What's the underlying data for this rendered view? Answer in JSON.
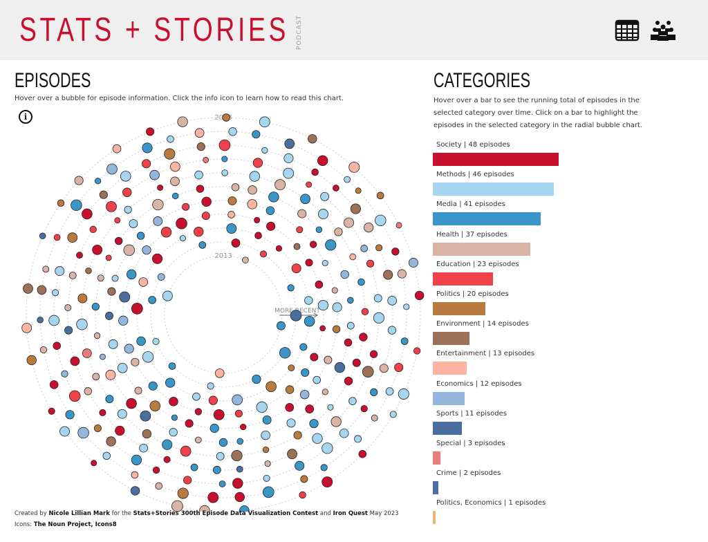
{
  "header": {
    "logo": "STATS + STORIES",
    "logo_sub": "PODCAST",
    "icons": [
      "calendar-grid-icon",
      "people-group-icon"
    ]
  },
  "episodes": {
    "title": "EPISODES",
    "description": "Hover over a bubble for episode information. Click the info icon to learn how to read this chart.",
    "info_icon": "i",
    "label_start": "2013",
    "label_end": "2023",
    "arrow_label": "MORE RECENT"
  },
  "categories": {
    "title": "CATEGORIES",
    "description": "Hover over a bar to see the running total of episodes in the selected category over time. Click on a bar to highlight the episodes in the selected category in the radial bubble chart."
  },
  "chart_data": {
    "type": "bar",
    "orientation": "horizontal",
    "categories": [
      "Society",
      "Methods",
      "Media",
      "Health",
      "Education",
      "Politics",
      "Environment",
      "Entertainment",
      "Economics",
      "Sports",
      "Special",
      "Crime",
      "Politics, Economics"
    ],
    "values": [
      48,
      46,
      41,
      37,
      23,
      20,
      14,
      13,
      12,
      11,
      3,
      2,
      1
    ],
    "labels": [
      "Society | 48 episodes",
      "Methods | 46 episodes",
      "Media | 41 episodes",
      "Health | 37 episodes",
      "Education | 23 episodes",
      "Politics | 20 episodes",
      "Environment | 14 episodes",
      "Entertainment | 13 episodes",
      "Economics | 12 episodes",
      "Sports | 11 episodes",
      "Special | 3 episodes",
      "Crime | 2 episodes",
      "Politics, Economics | 1 episodes"
    ],
    "colors": [
      "#c8102e",
      "#a6d5ef",
      "#3a96c8",
      "#d9b3a3",
      "#ef4149",
      "#b87a3e",
      "#9b7158",
      "#fdb4a3",
      "#94b6dc",
      "#4a6f9f",
      "#e87b7c",
      "#4a6fa8",
      "#e8b57b"
    ],
    "radial_years": [
      2013,
      2023
    ]
  },
  "footer": {
    "line1_a": "Created by ",
    "line1_b": "Nicole Lillian Mark",
    "line1_c": " for the ",
    "line1_d": "Stats+Stories 300th Episode Data Visualization Contest",
    "line1_e": "  and ",
    "line1_f": "Iron Quest",
    "line1_g": " May 2023",
    "line2_a": "Icons: ",
    "line2_b": "The Noun Project, Icons8"
  }
}
